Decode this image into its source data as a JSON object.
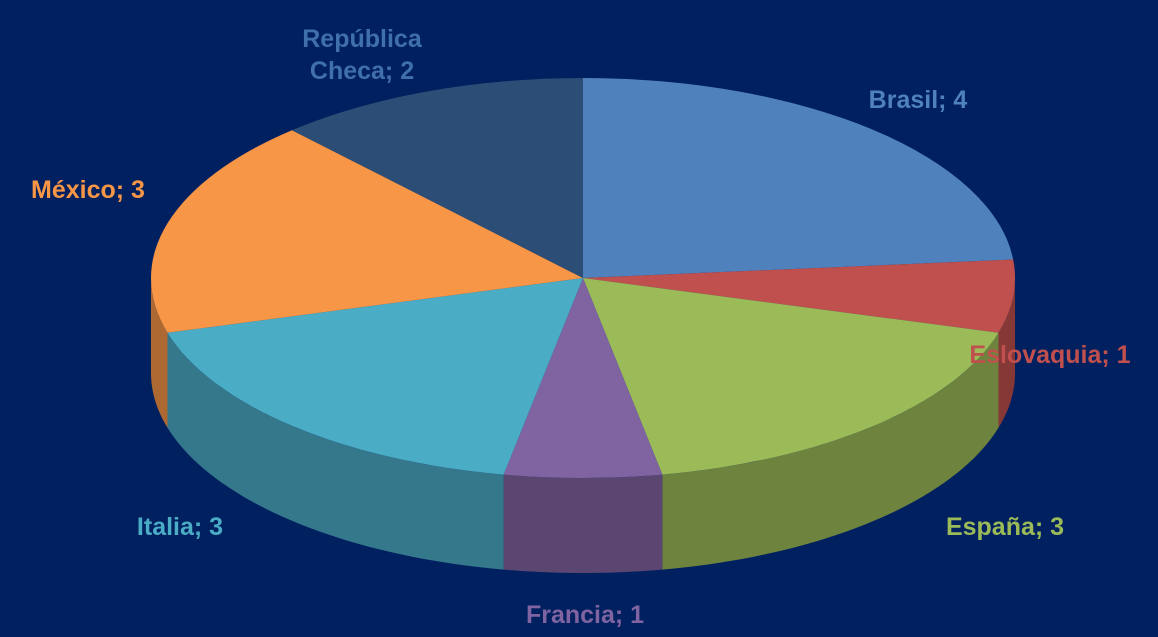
{
  "chart_data": {
    "type": "pie",
    "values": [
      4,
      1,
      3,
      1,
      3,
      3,
      2
    ],
    "value_labels": [
      "Brasil; 4",
      "Eslovaquia; 1",
      "España; 3",
      "Francia; 1",
      "Italia; 3",
      "México; 3",
      "República Checa; 2"
    ],
    "colors": [
      "#4f81bd",
      "#c0504d",
      "#9bbb59",
      "#8064a2",
      "#4bacc6",
      "#f79646",
      "#2c4d75"
    ]
  }
}
